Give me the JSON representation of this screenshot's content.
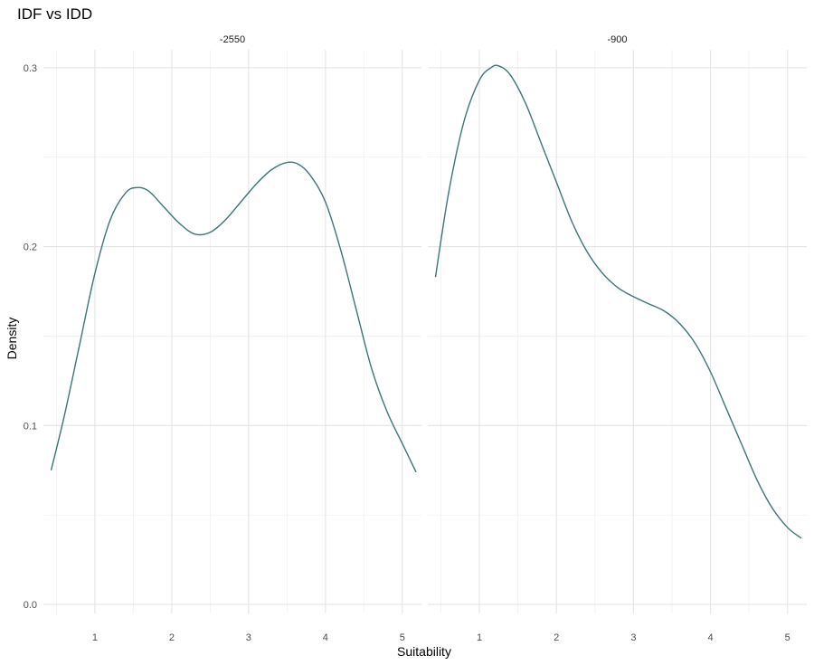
{
  "chart_data": {
    "type": "line",
    "title": "IDF vs IDD",
    "xlabel": "Suitability",
    "ylabel": "Density",
    "series_color": "#3f7478",
    "x_ticks": [
      1,
      2,
      3,
      4,
      5
    ],
    "y_ticks": [
      0.0,
      0.1,
      0.2,
      0.3
    ],
    "y_tick_labels": [
      "0.0",
      "0.1",
      "0.2",
      "0.3"
    ],
    "xlim": [
      0.33,
      5.25
    ],
    "ylim": [
      -0.005,
      0.31
    ],
    "grid": true,
    "panels": [
      {
        "label": "-2550",
        "points": [
          [
            0.43,
            0.075
          ],
          [
            0.6,
            0.105
          ],
          [
            0.8,
            0.145
          ],
          [
            1.0,
            0.185
          ],
          [
            1.2,
            0.215
          ],
          [
            1.4,
            0.23
          ],
          [
            1.55,
            0.233
          ],
          [
            1.7,
            0.231
          ],
          [
            1.9,
            0.222
          ],
          [
            2.1,
            0.213
          ],
          [
            2.3,
            0.207
          ],
          [
            2.5,
            0.208
          ],
          [
            2.7,
            0.215
          ],
          [
            2.9,
            0.225
          ],
          [
            3.1,
            0.235
          ],
          [
            3.3,
            0.243
          ],
          [
            3.5,
            0.247
          ],
          [
            3.65,
            0.246
          ],
          [
            3.8,
            0.24
          ],
          [
            4.0,
            0.225
          ],
          [
            4.2,
            0.198
          ],
          [
            4.4,
            0.165
          ],
          [
            4.6,
            0.132
          ],
          [
            4.8,
            0.108
          ],
          [
            5.0,
            0.09
          ],
          [
            5.18,
            0.074
          ]
        ]
      },
      {
        "label": "-900",
        "points": [
          [
            0.43,
            0.183
          ],
          [
            0.6,
            0.23
          ],
          [
            0.8,
            0.27
          ],
          [
            1.0,
            0.293
          ],
          [
            1.15,
            0.3
          ],
          [
            1.25,
            0.301
          ],
          [
            1.4,
            0.296
          ],
          [
            1.6,
            0.28
          ],
          [
            1.8,
            0.258
          ],
          [
            2.0,
            0.236
          ],
          [
            2.2,
            0.214
          ],
          [
            2.4,
            0.197
          ],
          [
            2.6,
            0.185
          ],
          [
            2.8,
            0.177
          ],
          [
            3.0,
            0.172
          ],
          [
            3.2,
            0.168
          ],
          [
            3.4,
            0.164
          ],
          [
            3.6,
            0.157
          ],
          [
            3.8,
            0.146
          ],
          [
            4.0,
            0.13
          ],
          [
            4.2,
            0.11
          ],
          [
            4.4,
            0.09
          ],
          [
            4.6,
            0.07
          ],
          [
            4.8,
            0.054
          ],
          [
            5.0,
            0.043
          ],
          [
            5.18,
            0.037
          ]
        ]
      }
    ]
  }
}
